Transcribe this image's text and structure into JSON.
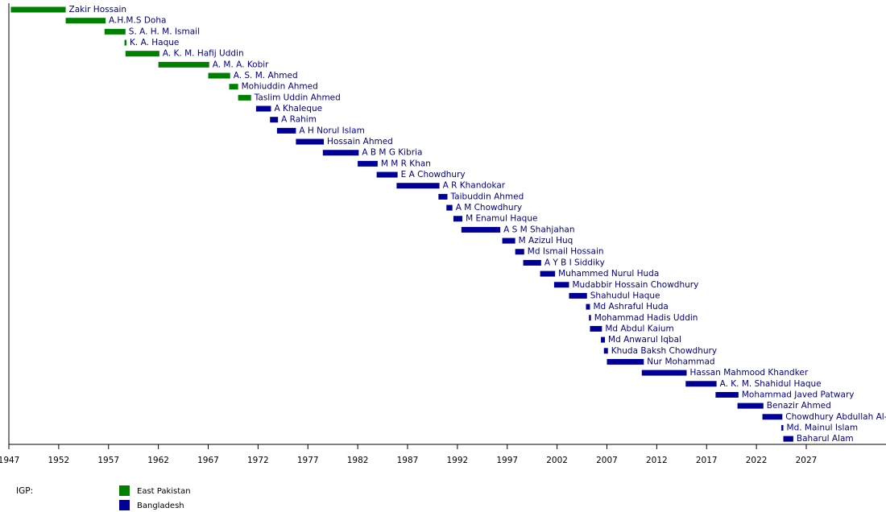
{
  "chart_data": {
    "type": "timeline",
    "xlim": [
      1947,
      2035
    ],
    "xticks": [
      1947,
      1952,
      1957,
      1962,
      1967,
      1972,
      1977,
      1982,
      1987,
      1992,
      1997,
      2002,
      2007,
      2012,
      2017,
      2022,
      2027
    ],
    "legend_title": "IGP:",
    "series": [
      {
        "name": "East Pakistan",
        "color": "#008000",
        "labels": [
          "Zakir Hossain",
          "A.H.M.S Doha",
          "S. A. H. M. Ismail",
          "K. A. Haque",
          "A. K. M. Hafij Uddin",
          "A. M. A. Kobir",
          "A. S. M. Ahmed",
          "Mohiuddin Ahmed",
          "Taslim Uddin Ahmed"
        ],
        "start": [
          1947.2,
          1952.7,
          1956.6,
          1958.6,
          1958.7,
          1962.0,
          1967.0,
          1969.1,
          1970.0
        ],
        "end": [
          1952.7,
          1956.7,
          1958.7,
          1958.8,
          1962.1,
          1967.1,
          1969.2,
          1970.0,
          1971.3
        ]
      },
      {
        "name": "Bangladesh",
        "color": "#000099",
        "labels": [
          "A Khaleque",
          "A Rahim",
          "A H Norul Islam",
          "Hossain Ahmed",
          "A B M G Kibria",
          "M M R Khan",
          "E A Chowdhury",
          "A R Khandokar",
          "Taibuddin Ahmed",
          "A M Chowdhury",
          "M Enamul Haque",
          "A S M Shahjahan",
          "M Azizul Huq",
          "Md Ismail Hossain",
          "A Y B I Siddiky",
          "Muhammed Nurul Huda",
          "Mudabbir Hossain Chowdhury",
          "Shahudul Haque",
          "Md Ashraful Huda",
          "Mohammad Hadis Uddin",
          "Md Abdul Kaium",
          "Md Anwarul Iqbal",
          "Khuda Baksh Chowdhury",
          "Nur Mohammad",
          "Hassan Mahmood Khandker",
          "A. K. M. Shahidul Haque",
          "Mohammad Javed Patwary",
          "Benazir Ahmed",
          "Chowdhury Abdullah Al-Mamun",
          "Md. Mainul Islam",
          "Baharul Alam"
        ],
        "start": [
          1971.8,
          1973.2,
          1973.9,
          1975.8,
          1978.5,
          1982.0,
          1983.9,
          1985.9,
          1990.1,
          1990.9,
          1991.6,
          1992.4,
          1996.5,
          1997.8,
          1998.6,
          2000.3,
          2001.7,
          2003.2,
          2004.9,
          2005.2,
          2005.3,
          2006.4,
          2006.7,
          2007.0,
          2010.5,
          2014.9,
          2017.9,
          2020.1,
          2022.6,
          2024.5,
          2024.7
        ],
        "end": [
          1973.3,
          1974.0,
          1975.8,
          1978.6,
          1982.1,
          1984.0,
          1986.0,
          1990.2,
          1991.0,
          1991.5,
          1992.5,
          1996.3,
          1997.8,
          1998.7,
          2000.4,
          2001.8,
          2003.2,
          2005.0,
          2005.3,
          2005.4,
          2006.5,
          2006.8,
          2007.1,
          2010.7,
          2015.0,
          2018.0,
          2020.2,
          2022.7,
          2024.6,
          2024.7,
          2025.7
        ]
      }
    ]
  }
}
